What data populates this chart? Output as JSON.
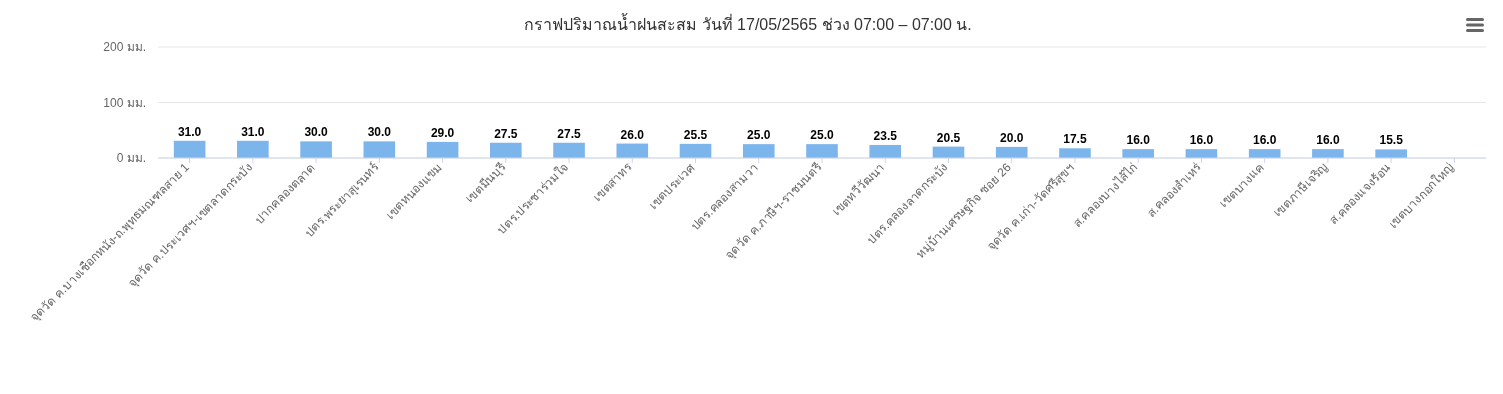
{
  "chart_data": {
    "type": "bar",
    "title": "กราฟปริมาณน้ำฝนสะสม วันที่ 17/05/2565 ช่วง 07:00 – 07:00 น.",
    "categories": [
      "จุดวัด ค.บางเชือกหนัง-ถ.พุทธมณฑลสาย 1",
      "จุดวัด ค.ประเวศฯ-เขตลาดกระบัง",
      "ปากคลองตลาด",
      "ปตร.พระยาสุเรนทร์",
      "เขตหนองแขม",
      "เขตมีนบุรี",
      "ปตร.ประชาร่วมใจ",
      "เขตสาทร",
      "เขตประเวศ",
      "ปตร.คลองสามวา",
      "จุดวัด ค.ภาษีฯ-ราชมนตรี",
      "เขตทวีวัฒนา",
      "ปตร.คลองลาดกระบัง",
      "หมู่บ้านเศรษฐกิจ ซอย 26",
      "จุดวัด ค.เก่า-วัดศรีสุขฯ",
      "ส.คลองบางไส้ไก่",
      "ส.คลองสำเหร่",
      "เขตบางแค",
      "เขตภาษีเจริญ",
      "ส.คลองแจงร้อน",
      "เขตบางกอกใหญ่"
    ],
    "values": [
      31.0,
      31.0,
      30.0,
      30.0,
      29.0,
      27.5,
      27.5,
      26.0,
      25.5,
      25.0,
      25.0,
      23.5,
      20.5,
      20.0,
      17.5,
      16.0,
      16.0,
      16.0,
      16.0,
      15.5,
      null
    ],
    "value_labels": [
      "31.0",
      "31.0",
      "30.0",
      "30.0",
      "29.0",
      "27.5",
      "27.5",
      "26.0",
      "25.5",
      "25.0",
      "25.0",
      "23.5",
      "20.5",
      "20.0",
      "17.5",
      "16.0",
      "16.0",
      "16.0",
      "16.0",
      "15.5",
      null
    ],
    "color": "#7cb5ec",
    "ylim": [
      0,
      200
    ],
    "yticks": [
      {
        "value": 0,
        "label": "0 มม."
      },
      {
        "value": 100,
        "label": "100 มม."
      },
      {
        "value": 200,
        "label": "200 มม."
      }
    ],
    "grid": "y"
  }
}
